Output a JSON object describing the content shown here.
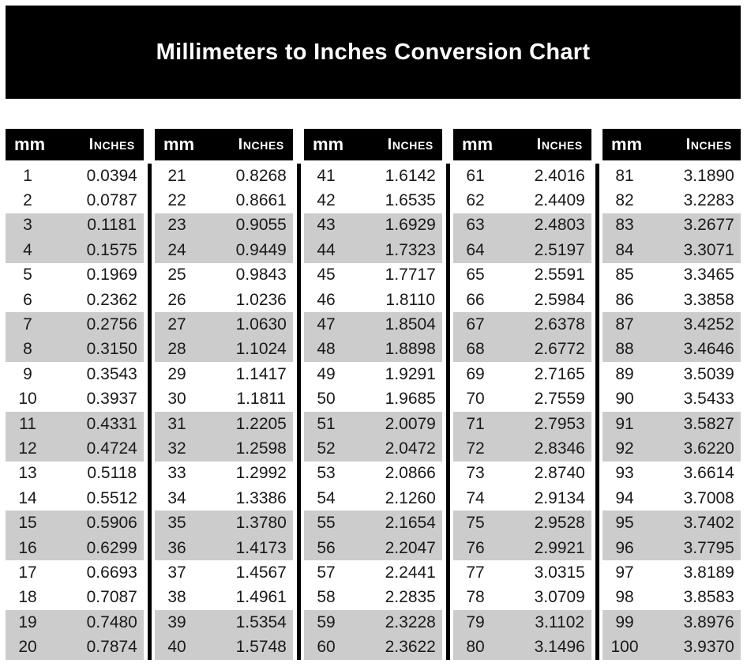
{
  "title": "Millimeters to Inches Conversion Chart",
  "table": {
    "column_headers": {
      "mm": "mm",
      "inches": "Inches"
    },
    "blocks": [
      {
        "rows": [
          [
            "1",
            "0.0394"
          ],
          [
            "2",
            "0.0787"
          ],
          [
            "3",
            "0.1181"
          ],
          [
            "4",
            "0.1575"
          ],
          [
            "5",
            "0.1969"
          ],
          [
            "6",
            "0.2362"
          ],
          [
            "7",
            "0.2756"
          ],
          [
            "8",
            "0.3150"
          ],
          [
            "9",
            "0.3543"
          ],
          [
            "10",
            "0.3937"
          ],
          [
            "11",
            "0.4331"
          ],
          [
            "12",
            "0.4724"
          ],
          [
            "13",
            "0.5118"
          ],
          [
            "14",
            "0.5512"
          ],
          [
            "15",
            "0.5906"
          ],
          [
            "16",
            "0.6299"
          ],
          [
            "17",
            "0.6693"
          ],
          [
            "18",
            "0.7087"
          ],
          [
            "19",
            "0.7480"
          ],
          [
            "20",
            "0.7874"
          ]
        ]
      },
      {
        "rows": [
          [
            "21",
            "0.8268"
          ],
          [
            "22",
            "0.8661"
          ],
          [
            "23",
            "0.9055"
          ],
          [
            "24",
            "0.9449"
          ],
          [
            "25",
            "0.9843"
          ],
          [
            "26",
            "1.0236"
          ],
          [
            "27",
            "1.0630"
          ],
          [
            "28",
            "1.1024"
          ],
          [
            "29",
            "1.1417"
          ],
          [
            "30",
            "1.1811"
          ],
          [
            "31",
            "1.2205"
          ],
          [
            "32",
            "1.2598"
          ],
          [
            "33",
            "1.2992"
          ],
          [
            "34",
            "1.3386"
          ],
          [
            "35",
            "1.3780"
          ],
          [
            "36",
            "1.4173"
          ],
          [
            "37",
            "1.4567"
          ],
          [
            "38",
            "1.4961"
          ],
          [
            "39",
            "1.5354"
          ],
          [
            "40",
            "1.5748"
          ]
        ]
      },
      {
        "rows": [
          [
            "41",
            "1.6142"
          ],
          [
            "42",
            "1.6535"
          ],
          [
            "43",
            "1.6929"
          ],
          [
            "44",
            "1.7323"
          ],
          [
            "45",
            "1.7717"
          ],
          [
            "46",
            "1.8110"
          ],
          [
            "47",
            "1.8504"
          ],
          [
            "48",
            "1.8898"
          ],
          [
            "49",
            "1.9291"
          ],
          [
            "50",
            "1.9685"
          ],
          [
            "51",
            "2.0079"
          ],
          [
            "52",
            "2.0472"
          ],
          [
            "53",
            "2.0866"
          ],
          [
            "54",
            "2.1260"
          ],
          [
            "55",
            "2.1654"
          ],
          [
            "56",
            "2.2047"
          ],
          [
            "57",
            "2.2441"
          ],
          [
            "58",
            "2.2835"
          ],
          [
            "59",
            "2.3228"
          ],
          [
            "60",
            "2.3622"
          ]
        ]
      },
      {
        "rows": [
          [
            "61",
            "2.4016"
          ],
          [
            "62",
            "2.4409"
          ],
          [
            "63",
            "2.4803"
          ],
          [
            "64",
            "2.5197"
          ],
          [
            "65",
            "2.5591"
          ],
          [
            "66",
            "2.5984"
          ],
          [
            "67",
            "2.6378"
          ],
          [
            "68",
            "2.6772"
          ],
          [
            "69",
            "2.7165"
          ],
          [
            "70",
            "2.7559"
          ],
          [
            "71",
            "2.7953"
          ],
          [
            "72",
            "2.8346"
          ],
          [
            "73",
            "2.8740"
          ],
          [
            "74",
            "2.9134"
          ],
          [
            "75",
            "2.9528"
          ],
          [
            "76",
            "2.9921"
          ],
          [
            "77",
            "3.0315"
          ],
          [
            "78",
            "3.0709"
          ],
          [
            "79",
            "3.1102"
          ],
          [
            "80",
            "3.1496"
          ]
        ]
      },
      {
        "rows": [
          [
            "81",
            "3.1890"
          ],
          [
            "82",
            "3.2283"
          ],
          [
            "83",
            "3.2677"
          ],
          [
            "84",
            "3.3071"
          ],
          [
            "85",
            "3.3465"
          ],
          [
            "86",
            "3.3858"
          ],
          [
            "87",
            "3.4252"
          ],
          [
            "88",
            "3.4646"
          ],
          [
            "89",
            "3.5039"
          ],
          [
            "90",
            "3.5433"
          ],
          [
            "91",
            "3.5827"
          ],
          [
            "92",
            "3.6220"
          ],
          [
            "93",
            "3.6614"
          ],
          [
            "94",
            "3.7008"
          ],
          [
            "95",
            "3.7402"
          ],
          [
            "96",
            "3.7795"
          ],
          [
            "97",
            "3.8189"
          ],
          [
            "98",
            "3.8583"
          ],
          [
            "99",
            "3.8976"
          ],
          [
            "100",
            "3.9370"
          ]
        ]
      }
    ]
  },
  "colors": {
    "page_bg": "#ffffff",
    "banner_bg": "#000000",
    "banner_text": "#ffffff",
    "header_bg": "#000000",
    "header_text": "#ffffff",
    "row_bg": "#ffffff",
    "stripe_bg": "#cccccc",
    "cell_text": "#1a1a1a",
    "divider": "#000000"
  }
}
